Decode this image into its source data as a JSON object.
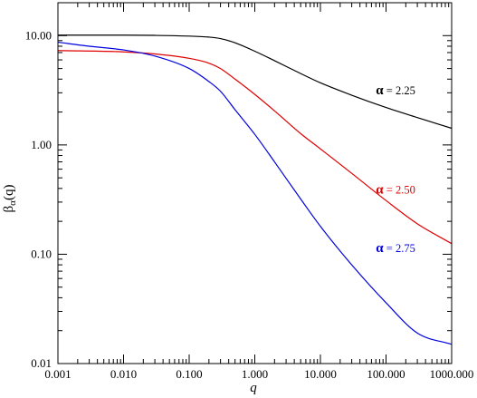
{
  "chart_data": {
    "type": "line",
    "title": "",
    "xlabel": "q",
    "ylabel_main": "β",
    "ylabel_sub": "α",
    "ylabel_arg": "(q)",
    "xscale": "log",
    "yscale": "log",
    "xlim": [
      0.001,
      1000
    ],
    "ylim": [
      0.01,
      20
    ],
    "grid": false,
    "x_ticks": [
      {
        "value": 0.001,
        "label": "0.001"
      },
      {
        "value": 0.01,
        "label": "0.010"
      },
      {
        "value": 0.1,
        "label": "0.100"
      },
      {
        "value": 1,
        "label": "1.000"
      },
      {
        "value": 10,
        "label": "10.000"
      },
      {
        "value": 100,
        "label": "100.000"
      },
      {
        "value": 1000,
        "label": "1000.000"
      }
    ],
    "y_ticks": [
      {
        "value": 0.01,
        "label": "0.01"
      },
      {
        "value": 0.1,
        "label": "0.10"
      },
      {
        "value": 1,
        "label": "1.00"
      },
      {
        "value": 10,
        "label": "10.00"
      }
    ],
    "series": [
      {
        "alpha_symbol": "α",
        "label_text": " = 2.25",
        "color": "#000000",
        "label_at": [
          70,
          2.9
        ],
        "x": [
          0.001,
          0.01,
          0.03,
          0.1,
          0.2,
          0.3,
          0.5,
          1,
          2,
          5,
          10,
          30,
          100,
          300,
          1000
        ],
        "y": [
          10.1,
          10.1,
          10.05,
          9.9,
          9.7,
          9.4,
          8.6,
          7.2,
          5.9,
          4.5,
          3.7,
          2.85,
          2.2,
          1.78,
          1.42
        ]
      },
      {
        "alpha_symbol": "α",
        "label_text": " = 2.50",
        "color": "#e00000",
        "label_at": [
          70,
          0.36
        ],
        "x": [
          0.001,
          0.01,
          0.03,
          0.1,
          0.2,
          0.3,
          0.5,
          1,
          2,
          5,
          10,
          30,
          100,
          300,
          1000
        ],
        "y": [
          7.3,
          7.1,
          6.8,
          6.2,
          5.6,
          5.0,
          4.0,
          2.9,
          2.05,
          1.27,
          0.92,
          0.55,
          0.31,
          0.19,
          0.125
        ]
      },
      {
        "alpha_symbol": "α",
        "label_text": " = 2.75",
        "color": "#0000e0",
        "label_at": [
          70,
          0.105
        ],
        "x": [
          0.001,
          0.003,
          0.01,
          0.03,
          0.1,
          0.2,
          0.3,
          0.5,
          1,
          2,
          5,
          10,
          30,
          100,
          300,
          1000
        ],
        "y": [
          8.7,
          8.0,
          7.4,
          6.5,
          5.0,
          3.8,
          3.1,
          2.1,
          1.25,
          0.7,
          0.32,
          0.18,
          0.08,
          0.036,
          0.019,
          0.015
        ]
      }
    ]
  }
}
